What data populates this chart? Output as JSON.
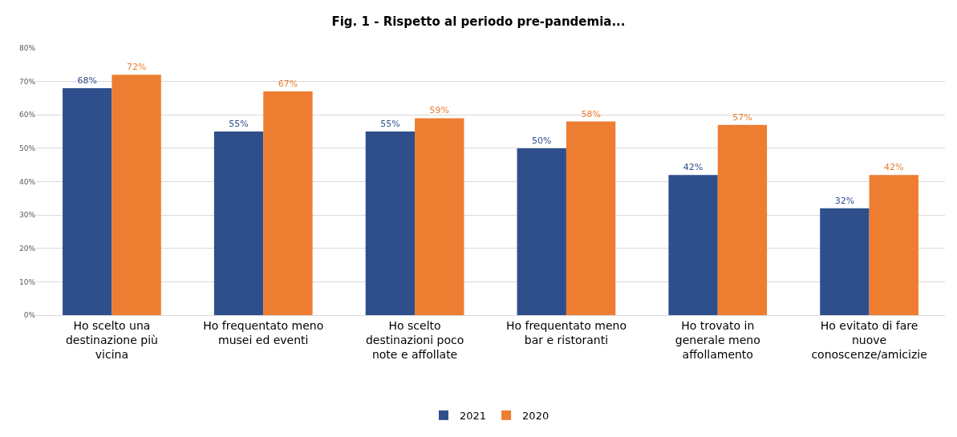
{
  "chart_data": {
    "type": "bar",
    "title": "Fig. 1 - Rispetto al periodo pre-pandemia...",
    "categories": [
      "Ho scelto una destinazione più vicina",
      "Ho frequentato meno musei ed eventi",
      "Ho scelto destinazioni poco note e affollate",
      "Ho frequentato meno bar e ristoranti",
      "Ho trovato in generale meno affollamento",
      "Ho evitato di fare nuove conoscenze/amicizie"
    ],
    "series": [
      {
        "name": "2021",
        "color": "#2e4f8c",
        "values": [
          68,
          55,
          55,
          50,
          42,
          32
        ],
        "value_labels": [
          "68%",
          "55%",
          "55%",
          "50%",
          "42%",
          "32%"
        ]
      },
      {
        "name": "2020",
        "color": "#ed7d31",
        "values": [
          72,
          67,
          59,
          58,
          57,
          42
        ],
        "value_labels": [
          "72%",
          "67%",
          "59%",
          "58%",
          "57%",
          "42%"
        ]
      }
    ],
    "ylim": [
      0,
      80
    ],
    "yticks": [
      {
        "value": 0,
        "label": "0%"
      },
      {
        "value": 10,
        "label": "10%"
      },
      {
        "value": 20,
        "label": "20%"
      },
      {
        "value": 30,
        "label": "30%"
      },
      {
        "value": 40,
        "label": "40%"
      },
      {
        "value": 50,
        "label": "50%"
      },
      {
        "value": 60,
        "label": "60%"
      },
      {
        "value": 70,
        "label": "70%"
      },
      {
        "value": 80,
        "label": "80%"
      }
    ],
    "grid": "y",
    "legend": "bottom"
  }
}
